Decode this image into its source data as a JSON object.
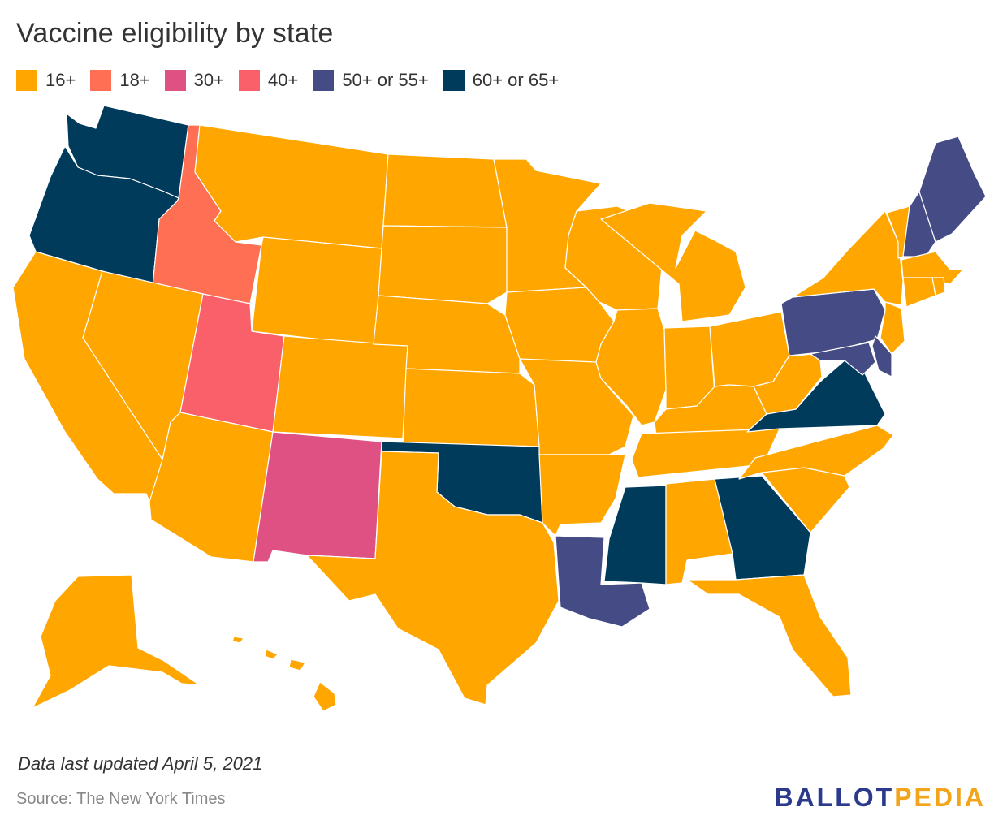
{
  "title": "Vaccine eligibility by state",
  "legend": [
    {
      "label": "16+",
      "color": "#ffa600"
    },
    {
      "label": "18+",
      "color": "#ff6f53"
    },
    {
      "label": "30+",
      "color": "#de5182"
    },
    {
      "label": "40+",
      "color": "#f9606a"
    },
    {
      "label": "50+ or 55+",
      "color": "#454b85"
    },
    {
      "label": "60+ or 65+",
      "color": "#003b5c"
    }
  ],
  "map": {
    "category_by_state": {
      "WA": "60+ or 65+",
      "OR": "60+ or 65+",
      "OK": "60+ or 65+",
      "MS": "60+ or 65+",
      "GA": "60+ or 65+",
      "VA": "60+ or 65+",
      "LA": "50+ or 55+",
      "PA": "50+ or 55+",
      "MD": "50+ or 55+",
      "DE": "50+ or 55+",
      "NH": "50+ or 55+",
      "ME": "50+ or 55+",
      "ID": "18+",
      "UT": "40+",
      "NM": "30+",
      "CA": "16+",
      "NV": "16+",
      "AZ": "16+",
      "MT": "16+",
      "WY": "16+",
      "CO": "16+",
      "ND": "16+",
      "SD": "16+",
      "NE": "16+",
      "KS": "16+",
      "TX": "16+",
      "MN": "16+",
      "IA": "16+",
      "MO": "16+",
      "AR": "16+",
      "WI": "16+",
      "IL": "16+",
      "MI": "16+",
      "IN": "16+",
      "OH": "16+",
      "KY": "16+",
      "TN": "16+",
      "AL": "16+",
      "FL": "16+",
      "SC": "16+",
      "NC": "16+",
      "WV": "16+",
      "NY": "16+",
      "NJ": "16+",
      "VT": "16+",
      "MA": "16+",
      "CT": "16+",
      "RI": "16+",
      "AK": "16+",
      "HI": "16+"
    }
  },
  "footer": {
    "note": "Data last updated April 5, 2021",
    "source": "Source: The New York Times",
    "logo_part1": "BALLOT",
    "logo_part2": "PEDIA"
  }
}
